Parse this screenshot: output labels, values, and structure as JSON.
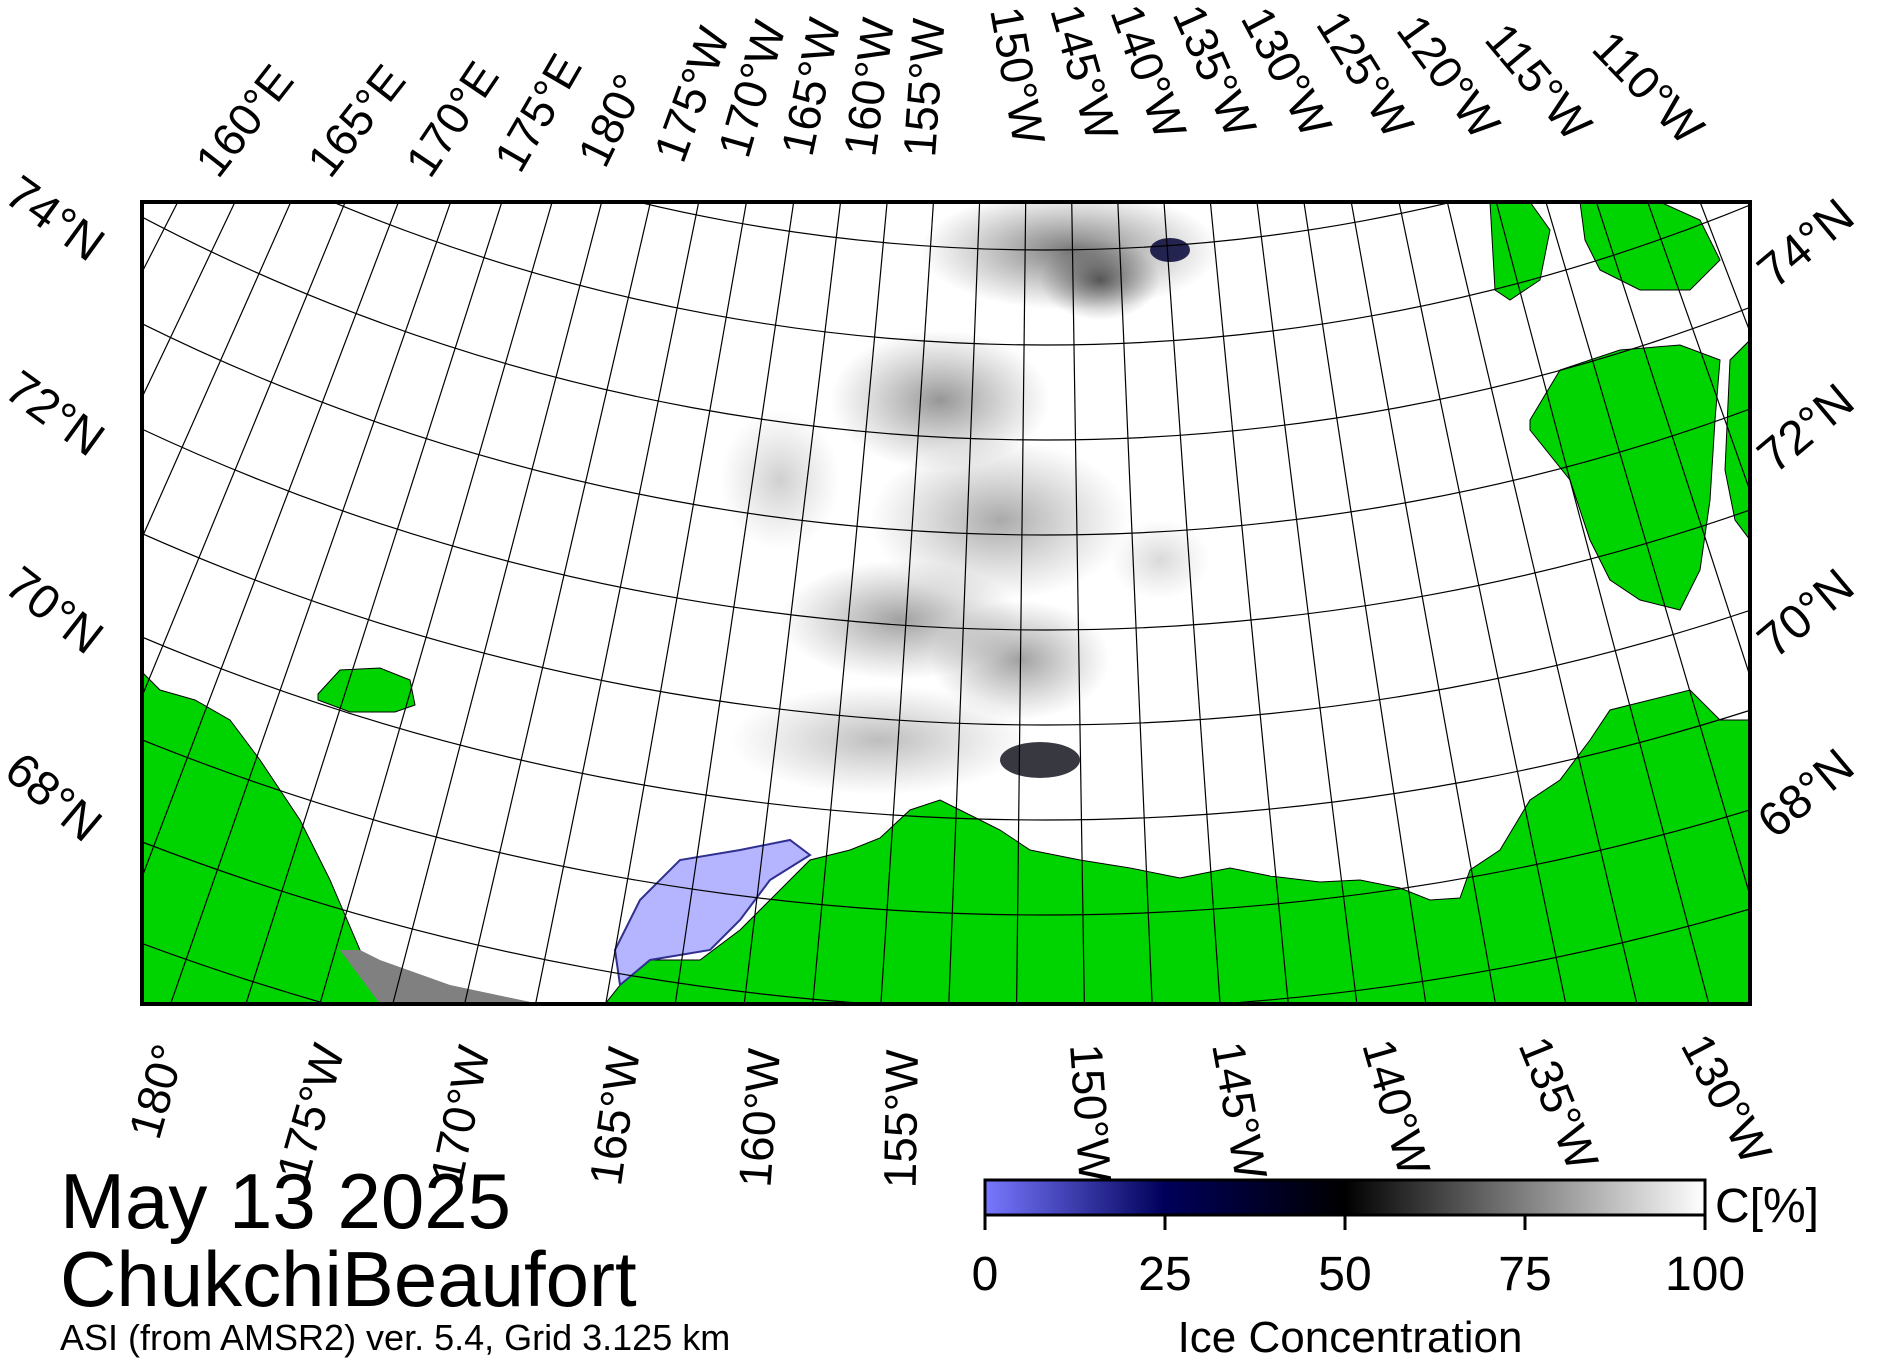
{
  "title": {
    "date": "May 13 2025",
    "region": "ChukchiBeaufort",
    "source": "ASI (from AMSR2) ver. 5.4,  Grid 3.125 km"
  },
  "map": {
    "top_lon_labels": [
      "160°E",
      "165°E",
      "170°E",
      "175°E",
      "180°",
      "175°W",
      "170°W",
      "165°W",
      "160°W",
      "155°W",
      "150°W",
      "145°W",
      "140°W",
      "135°W",
      "130°W",
      "125°W",
      "120°W",
      "115°W",
      "110°W"
    ],
    "bottom_lon_labels": [
      "180°",
      "175°W",
      "170°W",
      "165°W",
      "160°W",
      "155°W",
      "150°W",
      "145°W",
      "140°W",
      "135°W",
      "130°W"
    ],
    "left_lat_labels": [
      "74°N",
      "72°N",
      "70°N",
      "68°N"
    ],
    "right_lat_labels": [
      "74°N",
      "72°N",
      "70°N",
      "68°N"
    ]
  },
  "colorbar": {
    "title": "Ice Concentration",
    "unit": "C[%]",
    "ticks": [
      "0",
      "25",
      "50",
      "75",
      "100"
    ]
  },
  "colors": {
    "land": "#00d400",
    "open_water": "#b4b4ff",
    "ice_full": "#ffffff",
    "ice_mid": "#000000",
    "ice_low": "#00005a",
    "no_data": "#808080"
  }
}
